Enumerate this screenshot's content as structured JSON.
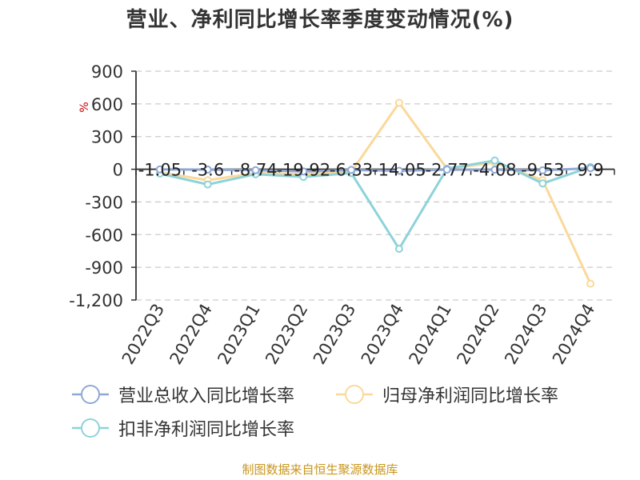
{
  "title": "营业、净利同比增长率季度变动情况(%)",
  "source": "制图数据来自恒生聚源数据库",
  "colors": {
    "revenue": "#8fa8d6",
    "netprofit": "#fad99a",
    "deducted": "#8dd3d9",
    "axis": "#333333",
    "grid": "#cccccc",
    "unit": "#cc0000",
    "source": "#c8961e"
  },
  "chart_data": {
    "type": "line",
    "title": "营业、净利同比增长率季度变动情况(%)",
    "ylabel": "%",
    "ylim": [
      -1200,
      900
    ],
    "yticks": [
      900,
      600,
      300,
      0,
      -300,
      -600,
      -900,
      -1200
    ],
    "ytick_labels": [
      "900",
      "600",
      "300",
      "0",
      "-300",
      "-600",
      "-900",
      "-1,200"
    ],
    "grid": true,
    "legend_position": "bottom",
    "categories": [
      "2022Q3",
      "2022Q4",
      "2023Q1",
      "2023Q2",
      "2023Q3",
      "2023Q4",
      "2024Q1",
      "2024Q2",
      "2024Q3",
      "2024Q4"
    ],
    "series": [
      {
        "name": "营业总收入同比增长率",
        "color": "#8fa8d6",
        "values": [
          -1.05,
          -3.6,
          -8.74,
          -19.92,
          -6.33,
          -14.05,
          -2.77,
          -4.08,
          -9.53,
          9.9
        ],
        "labels": [
          "-1.05",
          "-3.6",
          "-8.74",
          "-19.92",
          "-6.33",
          "-14.05",
          "-2.77",
          "-4.08",
          "-9.53",
          "9.9"
        ]
      },
      {
        "name": "归母净利润同比增长率",
        "color": "#fad99a",
        "values": [
          -30,
          -100,
          -35,
          -45,
          -25,
          610,
          5,
          60,
          -100,
          -1050
        ]
      },
      {
        "name": "扣非净利润同比增长率",
        "color": "#8dd3d9",
        "values": [
          -40,
          -140,
          -45,
          -70,
          -35,
          -730,
          5,
          80,
          -130,
          20
        ]
      }
    ]
  }
}
